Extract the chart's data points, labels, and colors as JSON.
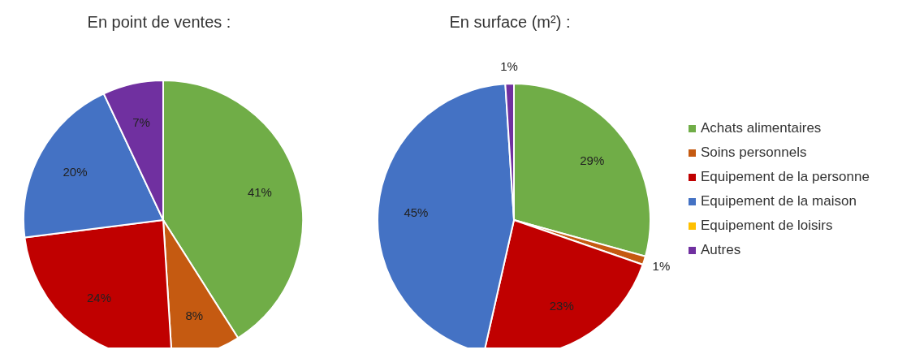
{
  "chart_data": [
    {
      "type": "pie",
      "title": "En point de ventes :",
      "categories": [
        null,
        null,
        null,
        null,
        null,
        null
      ],
      "values": [
        41,
        8,
        24,
        20,
        0,
        7
      ],
      "colors": [
        "#70ad47",
        "#c55a11",
        "#c00000",
        "#4472c4",
        "#ffc000",
        "#7030a0"
      ],
      "value_labels": [
        "41%",
        "8%",
        "24%",
        "20%",
        null,
        "7%"
      ]
    },
    {
      "type": "pie",
      "title": "En surface (m²) :",
      "categories": [
        "Achats alimentaires",
        "Soins personnels",
        "Equipement de la personne",
        "Equipement de la maison",
        "Equipement de loisirs",
        "Autres"
      ],
      "values": [
        29,
        1,
        23,
        45,
        0,
        1
      ],
      "colors": [
        "#70ad47",
        "#c55a11",
        "#c00000",
        "#4472c4",
        "#ffc000",
        "#7030a0"
      ],
      "value_labels": [
        "29%",
        "1%",
        "23%",
        "45%",
        null,
        "1%"
      ],
      "legend": "right"
    }
  ]
}
